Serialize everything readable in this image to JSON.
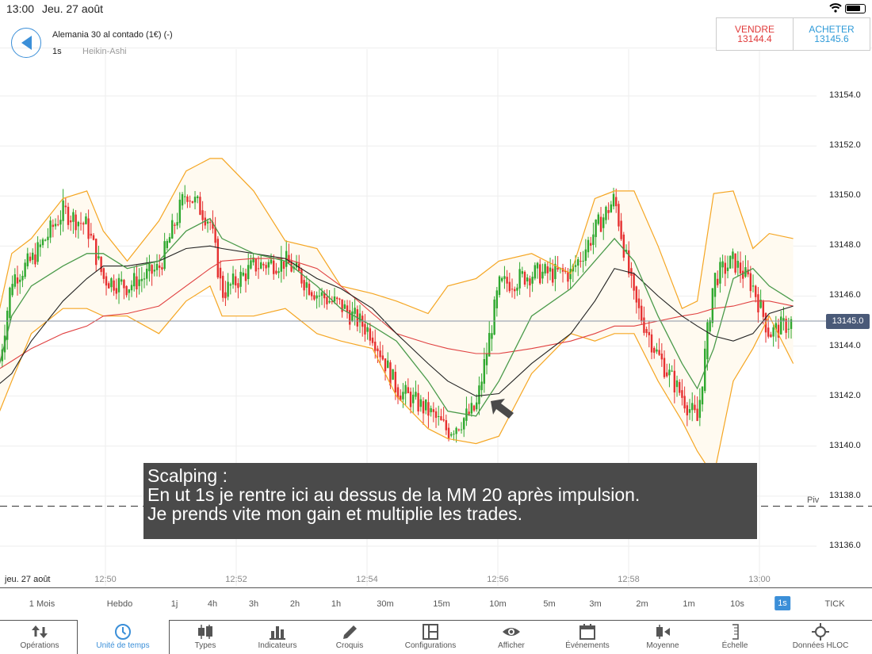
{
  "status": {
    "time": "13:00",
    "date": "Jeu. 27 août"
  },
  "header": {
    "title": "Alemania 30 al contado (1€) (-)",
    "timeframe": "1s",
    "chart_type": "Heikin-Ashi",
    "back_icon": "back-arrow-icon"
  },
  "prices": {
    "sell_label": "VENDRE",
    "sell_value": "13144.4",
    "buy_label": "ACHETER",
    "buy_value": "13145.6",
    "sell_color": "#e03a3a",
    "buy_color": "#2e9ad8"
  },
  "chart_data": {
    "type": "candlestick",
    "y_ticks": [
      "13154.0",
      "13152.0",
      "13150.0",
      "13148.0",
      "13146.0",
      "13144.0",
      "13142.0",
      "13140.0",
      "13138.0",
      "13136.0"
    ],
    "ylim": [
      13136,
      13154
    ],
    "x_ticks": [
      "12:50",
      "12:52",
      "12:54",
      "12:56",
      "12:58",
      "13:00"
    ],
    "date_label": "jeu. 27 août",
    "current_price": "13145.0",
    "pivot": {
      "label": "Piv",
      "value": 13137.6
    },
    "times": [
      "12:48:23",
      "12:48:34",
      "12:48:52",
      "12:49:21",
      "12:49:43",
      "12:49:58",
      "12:50:20",
      "12:50:49",
      "12:51:14",
      "12:51:36",
      "12:51:47",
      "12:52:16",
      "12:52:45",
      "12:53:14",
      "12:53:36",
      "12:54:05",
      "12:54:27",
      "12:54:56",
      "12:55:14",
      "12:55:40",
      "12:56:01",
      "12:56:31",
      "12:57:07",
      "12:57:29",
      "12:57:47",
      "12:58:05",
      "12:58:27",
      "12:58:49",
      "12:59:03",
      "12:59:18",
      "12:59:36",
      "12:59:54",
      "13:00:09",
      "13:00:31"
    ],
    "price": [
      13143.4,
      13146.7,
      13147.4,
      13149.4,
      13148.8,
      13146.7,
      13146.4,
      13147.1,
      13150.2,
      13149.0,
      13146.1,
      13147.2,
      13147.4,
      13146.1,
      13145.6,
      13144.5,
      13142.3,
      13141.4,
      13140.6,
      13141.5,
      13146.4,
      13146.9,
      13146.9,
      13148.6,
      13149.9,
      13145.8,
      13143.6,
      13142.0,
      13141.0,
      13146.7,
      13147.4,
      13146.4,
      13144.5,
      13145.0
    ],
    "bands_upper": [
      13145.5,
      13147.7,
      13148.3,
      13149.9,
      13150.2,
      13148.6,
      13147.4,
      13149.0,
      13151.0,
      13151.5,
      13151.5,
      13150.2,
      13148.2,
      13147.9,
      13146.4,
      13146.1,
      13145.8,
      13145.3,
      13146.4,
      13146.7,
      13147.4,
      13147.7,
      13146.9,
      13149.9,
      13150.2,
      13150.2,
      13148.0,
      13145.5,
      13145.8,
      13150.1,
      13150.2,
      13147.9,
      13148.5,
      13148.3
    ],
    "bands_lower": [
      13141.4,
      13142.6,
      13144.5,
      13145.5,
      13145.5,
      13145.2,
      13145.2,
      13144.5,
      13145.8,
      13146.4,
      13145.2,
      13145.2,
      13145.5,
      13144.5,
      13144.2,
      13143.9,
      13142.0,
      13140.7,
      13140.3,
      13140.1,
      13140.4,
      13142.9,
      13144.5,
      13144.2,
      13144.5,
      13144.5,
      13142.6,
      13141.0,
      13139.8,
      13138.8,
      13142.6,
      13143.9,
      13145.2,
      13143.3
    ],
    "ma_green": [
      13143.3,
      13145.2,
      13146.4,
      13147.2,
      13147.7,
      13147.7,
      13147.1,
      13147.4,
      13148.6,
      13149.1,
      13148.3,
      13147.7,
      13147.4,
      13146.4,
      13145.5,
      13144.8,
      13144.2,
      13142.6,
      13141.4,
      13141.2,
      13142.6,
      13145.2,
      13146.3,
      13147.4,
      13148.3,
      13147.4,
      13145.2,
      13143.3,
      13142.3,
      13143.9,
      13146.7,
      13147.1,
      13146.4,
      13145.8
    ],
    "ma_black": [
      13142.5,
      13142.9,
      13144.2,
      13145.8,
      13146.7,
      13147.2,
      13147.2,
      13147.4,
      13147.9,
      13148.0,
      13147.9,
      13147.7,
      13147.5,
      13146.7,
      13146.3,
      13145.5,
      13144.5,
      13143.3,
      13142.6,
      13142.0,
      13142.1,
      13143.3,
      13144.5,
      13145.8,
      13147.1,
      13146.9,
      13146.0,
      13145.2,
      13144.8,
      13144.4,
      13144.2,
      13144.5,
      13145.3,
      13145.6
    ],
    "ma_red": [
      13143.1,
      13143.4,
      13143.9,
      13144.5,
      13144.8,
      13145.2,
      13145.3,
      13145.6,
      13146.4,
      13147.1,
      13147.4,
      13147.5,
      13147.5,
      13147.1,
      13146.4,
      13145.3,
      13144.5,
      13144.1,
      13143.9,
      13143.7,
      13143.7,
      13143.9,
      13144.2,
      13144.5,
      13144.8,
      13144.8,
      13145.0,
      13145.2,
      13145.3,
      13145.5,
      13145.6,
      13145.8,
      13145.8,
      13145.6
    ],
    "colors": {
      "up": "#2ea82e",
      "down": "#e63030",
      "bands": "#f5a623",
      "band_fill": "#fffaf0",
      "ma_green": "#4a9a4a",
      "ma_black": "#222222",
      "ma_red": "#e04040"
    }
  },
  "annotation": {
    "lines": [
      "Scalping :",
      "En ut 1s je rentre ici au dessus de la MM 20 après impulsion.",
      "Je prends vite mon gain et multiplie les trades."
    ]
  },
  "timeframes": [
    "1 Mois",
    "Hebdo",
    "1j",
    "4h",
    "3h",
    "2h",
    "1h",
    "30m",
    "15m",
    "10m",
    "5m",
    "3m",
    "2m",
    "1m",
    "10s",
    "1s",
    "TICK"
  ],
  "selected_timeframe": "1s",
  "toolbar": [
    {
      "label": "Opérations",
      "icon": "buy-sell-arrows-icon"
    },
    {
      "label": "Unité de temps",
      "icon": "clock-icon",
      "active": true
    },
    {
      "label": "Types",
      "icon": "candles-icon"
    },
    {
      "label": "Indicateurs",
      "icon": "bar-chart-icon"
    },
    {
      "label": "Croquis",
      "icon": "pencil-icon"
    },
    {
      "label": "Configurations",
      "icon": "layout-icon"
    },
    {
      "label": "Afficher",
      "icon": "eye-icon"
    },
    {
      "label": "Événements",
      "icon": "calendar-icon"
    },
    {
      "label": "Moyenne",
      "icon": "average-icon"
    },
    {
      "label": "Échelle",
      "icon": "scale-icon"
    },
    {
      "label": "Données HLOC",
      "icon": "crosshair-icon"
    }
  ],
  "accent": "#3b8fd8"
}
